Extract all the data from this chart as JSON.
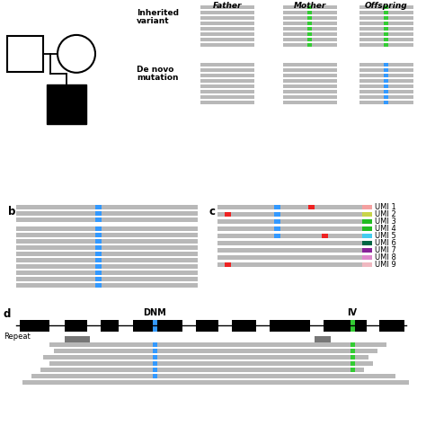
{
  "fig_width": 4.74,
  "fig_height": 4.74,
  "bg_color": "#ffffff",
  "gray_read": "#b8b8b8",
  "blue_snp": "#3399ff",
  "green_snp": "#33cc33",
  "red_snp": "#ee2222",
  "dark_gray_repeat": "#777777",
  "umi_colors": [
    "#f4a0a0",
    "#f4a0a0",
    "#c8d44a",
    "#22bb22",
    "#22bb22",
    "#44ccee",
    "#006644",
    "#993399",
    "#dd88cc",
    "#f0b8c0"
  ],
  "panel_b_label": "b",
  "panel_c_label": "c",
  "panel_d_label": "d",
  "col_labels": [
    "Father",
    "Mother",
    "Offspring"
  ],
  "umi_labels": [
    "UMI 1",
    "UMI 2",
    "UMI 3",
    "UMI 4",
    "UMI 5",
    "UMI 6",
    "UMI 7",
    "UMI 8",
    "UMI 9"
  ],
  "dnm_label": "DNM",
  "iv_label": "IV",
  "repeat_label": "Repeat"
}
